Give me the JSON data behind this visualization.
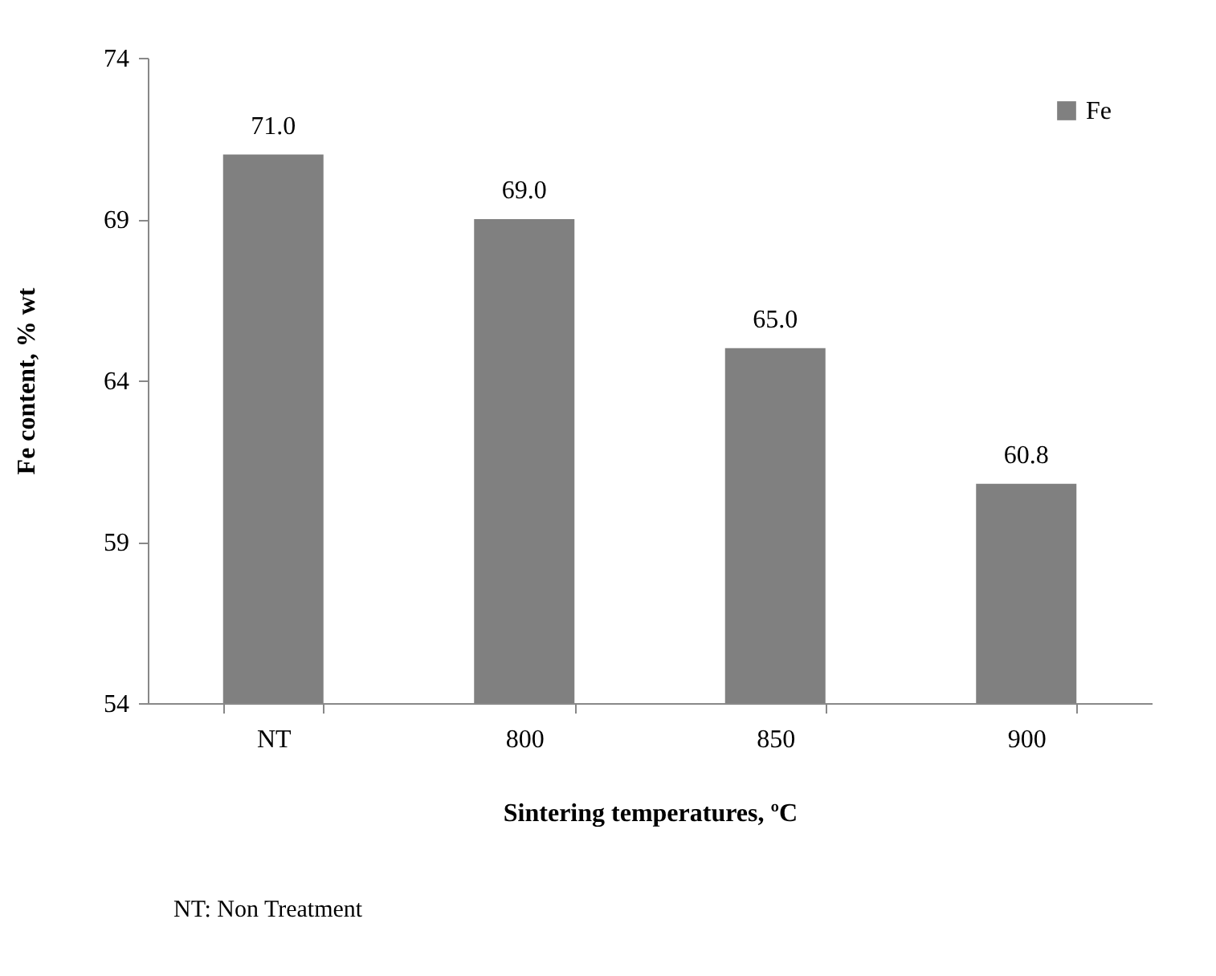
{
  "chart_data": {
    "type": "bar",
    "xlabel": "Sintering temperatures, ºC",
    "ylabel": "Fe content, % wt",
    "categories": [
      "NT",
      "800",
      "850",
      "900"
    ],
    "series": [
      {
        "name": "Fe",
        "color": "#808080",
        "values": [
          71.0,
          69.0,
          65.0,
          60.8
        ]
      }
    ],
    "value_labels": [
      "71.0",
      "69.0",
      "65.0",
      "60.8"
    ],
    "ylim": [
      54,
      74
    ],
    "yticks": [
      54,
      59,
      64,
      69,
      74
    ],
    "grid": false,
    "legend": "top right",
    "annotations": [
      "NT: Non Treatment"
    ]
  }
}
